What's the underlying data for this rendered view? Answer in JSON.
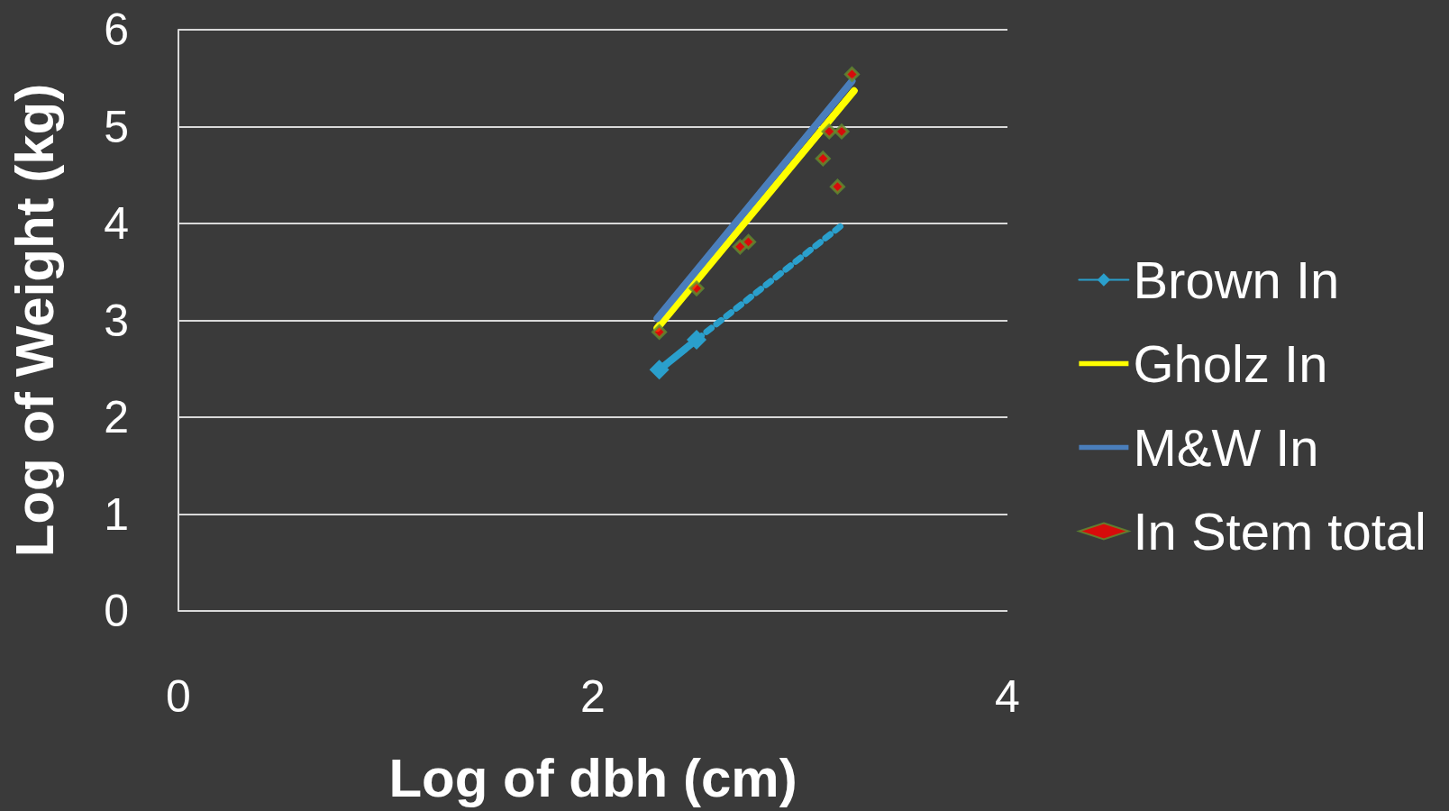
{
  "chart_data": {
    "type": "line",
    "xlabel": "Log of dbh (cm)",
    "ylabel": "Log of Weight (kg)",
    "xlim": [
      0,
      4
    ],
    "xticks": [
      0,
      2,
      4
    ],
    "ylim": [
      0,
      6
    ],
    "yticks": [
      0,
      1,
      2,
      3,
      4,
      5,
      6
    ],
    "grid": "y",
    "legend": "right",
    "marker": "diamond",
    "series": [
      {
        "name": "Brown In",
        "color": "#2a9fcc",
        "x": [
          2.32,
          2.5
        ],
        "values": [
          2.49,
          2.8
        ]
      },
      {
        "color": "#2a9fcc",
        "line_style": "dotted",
        "marker": "none",
        "x": [
          2.5,
          3.2
        ],
        "values": [
          2.8,
          3.98
        ]
      },
      {
        "name": "Gholz In",
        "color": "#ffff00",
        "marker": "none",
        "x": [
          2.31,
          3.26
        ],
        "values": [
          2.92,
          5.37
        ]
      },
      {
        "name": "M&W In",
        "color": "#4a7ebb",
        "marker": "none",
        "x": [
          2.31,
          3.25
        ],
        "values": [
          3.02,
          5.47
        ]
      },
      {
        "name": "In Stem total",
        "type": "scatter",
        "color": "#ff0000",
        "x": [
          2.32,
          2.5,
          2.71,
          2.75,
          3.11,
          3.14,
          3.18,
          3.2,
          3.25
        ],
        "values": [
          2.88,
          3.33,
          3.76,
          3.81,
          4.67,
          4.95,
          4.38,
          4.95,
          5.54
        ]
      }
    ]
  }
}
